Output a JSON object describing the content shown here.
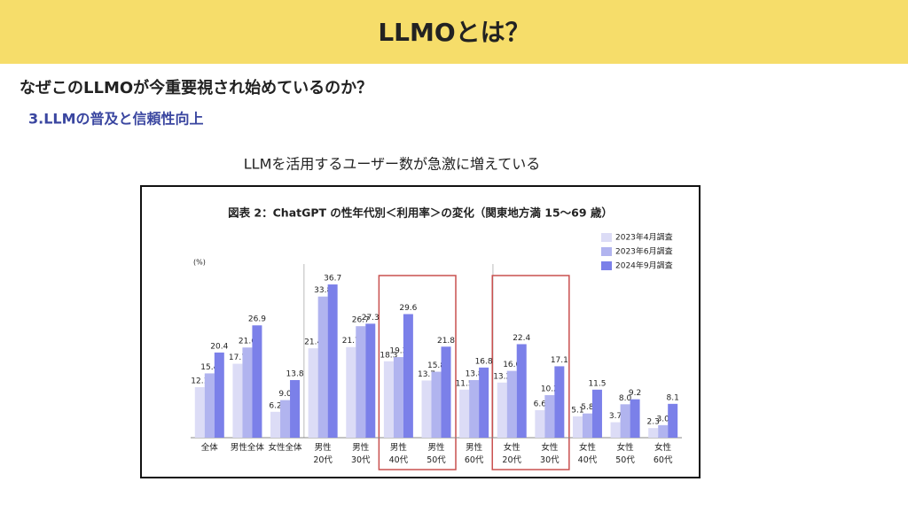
{
  "header": {
    "title": "LLMOとは？",
    "question": "なぜこのLLMOが今重要視され始めているのか？",
    "section": "3.LLMの普及と信頼性向上",
    "caption": "LLMを活用するユーザー数が急激に増えている"
  },
  "chart_data": {
    "type": "bar",
    "title": "図表 2：ChatGPT の性年代別＜利用率＞の変化（関東地方満 15〜69 歳）",
    "y_label": "(%)",
    "categories": [
      "全体",
      "男性全体",
      "女性全体",
      "男性\n20代",
      "男性\n30代",
      "男性\n40代",
      "男性\n50代",
      "男性\n60代",
      "女性\n20代",
      "女性\n30代",
      "女性\n40代",
      "女性\n50代",
      "女性\n60代"
    ],
    "ylim": [
      0,
      40
    ],
    "series": [
      {
        "name": "2023年4月調査",
        "color": "#dcdcf6",
        "values": [
          12.1,
          17.7,
          6.2,
          21.4,
          21.7,
          18.3,
          13.7,
          11.5,
          13.2,
          6.6,
          5.1,
          3.7,
          2.3
        ],
        "value_labels": [
          "12.1",
          "17.7",
          "6.2",
          "21.4",
          "21.7",
          "18.3",
          "13.7",
          "11.5",
          "13.2",
          "6.6",
          "5.1",
          "3.7",
          "2.3"
        ]
      },
      {
        "name": "2023年6月調査",
        "color": "#b1b4ef",
        "values": [
          15.4,
          21.6,
          9.0,
          33.8,
          26.7,
          19.3,
          15.8,
          13.8,
          16.0,
          10.2,
          5.8,
          8.0,
          3.0
        ],
        "value_labels": [
          "15.4",
          "21.6",
          "9.0",
          "33.8",
          "26.7",
          "19.3",
          "15.8",
          "13.8",
          "16.0",
          "10.2",
          "5.8",
          "8.0",
          "3.0"
        ]
      },
      {
        "name": "2024年9月調査",
        "color": "#7b80e9",
        "values": [
          20.4,
          26.9,
          13.8,
          36.7,
          27.3,
          29.6,
          21.8,
          16.8,
          22.4,
          17.1,
          11.5,
          9.2,
          8.1
        ],
        "value_labels": [
          "20.4",
          "26.9",
          "13.8",
          "36.7",
          "27.3",
          "29.6",
          "21.8",
          "16.8",
          "22.4",
          "17.1",
          "11.5",
          "9.2",
          "8.1"
        ]
      }
    ]
  }
}
